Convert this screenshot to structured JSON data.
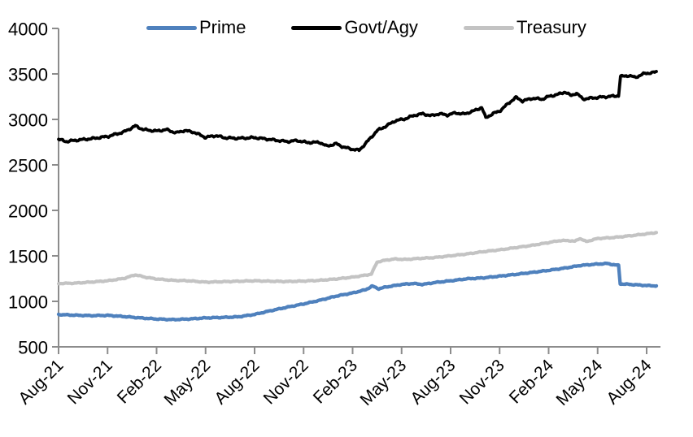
{
  "chart_data": {
    "type": "line",
    "title": "",
    "background": "#FFFFFF",
    "axis_color": "#8C8C8C",
    "grid": "off",
    "legend_position": "top",
    "x_axis": {
      "label": "",
      "tick_labels": [
        "Aug-21",
        "Nov-21",
        "Feb-22",
        "May-22",
        "Aug-22",
        "Nov-22",
        "Feb-23",
        "May-23",
        "Aug-23",
        "Nov-23",
        "Feb-24",
        "May-24",
        "Aug-24"
      ],
      "tick_months": [
        0,
        3,
        6,
        9,
        12,
        15,
        18,
        21,
        24,
        27,
        30,
        33,
        36
      ],
      "range_months": [
        0,
        36.6
      ]
    },
    "y_axis": {
      "label": "",
      "min": 500,
      "max": 4000,
      "step": 500,
      "tick_labels": [
        "500",
        "1000",
        "1500",
        "2000",
        "2500",
        "3000",
        "3500",
        "4000"
      ],
      "tick_values": [
        500,
        1000,
        1500,
        2000,
        2500,
        3000,
        3500,
        4000
      ]
    },
    "legend": [
      {
        "name": "Prime",
        "color": "#4F81BD"
      },
      {
        "name": "Govt/Agy",
        "color": "#000000"
      },
      {
        "name": "Treasury",
        "color": "#C3C3C3"
      }
    ],
    "series": [
      {
        "name": "Prime",
        "color": "#4F81BD",
        "stroke_width": 4.3,
        "noise_amp": 6,
        "points": [
          [
            0,
            855
          ],
          [
            1,
            848
          ],
          [
            2,
            843
          ],
          [
            3,
            846
          ],
          [
            4,
            833
          ],
          [
            5,
            818
          ],
          [
            6,
            806
          ],
          [
            7,
            799
          ],
          [
            8,
            806
          ],
          [
            9,
            818
          ],
          [
            10,
            823
          ],
          [
            11,
            830
          ],
          [
            12,
            856
          ],
          [
            13,
            898
          ],
          [
            14,
            936
          ],
          [
            15,
            972
          ],
          [
            16,
            1012
          ],
          [
            17,
            1058
          ],
          [
            18,
            1092
          ],
          [
            18.8,
            1128
          ],
          [
            19.2,
            1168
          ],
          [
            19.6,
            1138
          ],
          [
            20,
            1156
          ],
          [
            21,
            1186
          ],
          [
            21.7,
            1196
          ],
          [
            22.3,
            1186
          ],
          [
            23,
            1206
          ],
          [
            24,
            1226
          ],
          [
            25,
            1248
          ],
          [
            26,
            1258
          ],
          [
            27,
            1277
          ],
          [
            28,
            1297
          ],
          [
            29,
            1318
          ],
          [
            30,
            1341
          ],
          [
            31,
            1366
          ],
          [
            32,
            1396
          ],
          [
            33,
            1410
          ],
          [
            33.6,
            1416
          ],
          [
            34,
            1402
          ],
          [
            34.28,
            1396
          ],
          [
            34.38,
            1192
          ],
          [
            35,
            1186
          ],
          [
            36,
            1174
          ],
          [
            36.6,
            1170
          ]
        ]
      },
      {
        "name": "Govt/Agy",
        "color": "#000000",
        "stroke_width": 3.8,
        "noise_amp": 13,
        "points": [
          [
            0,
            2780
          ],
          [
            0.5,
            2757
          ],
          [
            1,
            2770
          ],
          [
            2,
            2788
          ],
          [
            3,
            2812
          ],
          [
            4,
            2862
          ],
          [
            4.7,
            2928
          ],
          [
            5.2,
            2888
          ],
          [
            6,
            2872
          ],
          [
            6.6,
            2888
          ],
          [
            7.2,
            2852
          ],
          [
            7.7,
            2878
          ],
          [
            8.3,
            2858
          ],
          [
            9,
            2802
          ],
          [
            9.6,
            2822
          ],
          [
            10.2,
            2798
          ],
          [
            11,
            2792
          ],
          [
            12,
            2800
          ],
          [
            13,
            2778
          ],
          [
            14,
            2756
          ],
          [
            14.6,
            2768
          ],
          [
            15.2,
            2746
          ],
          [
            16,
            2748
          ],
          [
            16.4,
            2706
          ],
          [
            17,
            2732
          ],
          [
            17.5,
            2692
          ],
          [
            18,
            2672
          ],
          [
            18.4,
            2660
          ],
          [
            19,
            2776
          ],
          [
            19.5,
            2876
          ],
          [
            20,
            2922
          ],
          [
            20.6,
            2984
          ],
          [
            21.2,
            3006
          ],
          [
            21.8,
            3046
          ],
          [
            22.3,
            3062
          ],
          [
            22.8,
            3040
          ],
          [
            23.3,
            3062
          ],
          [
            23.8,
            3048
          ],
          [
            24.3,
            3072
          ],
          [
            24.8,
            3058
          ],
          [
            25.4,
            3092
          ],
          [
            25.9,
            3132
          ],
          [
            26.15,
            3018
          ],
          [
            26.6,
            3064
          ],
          [
            27,
            3092
          ],
          [
            27.6,
            3186
          ],
          [
            28,
            3242
          ],
          [
            28.4,
            3202
          ],
          [
            29,
            3232
          ],
          [
            29.6,
            3222
          ],
          [
            30,
            3252
          ],
          [
            30.6,
            3276
          ],
          [
            31,
            3302
          ],
          [
            31.35,
            3262
          ],
          [
            31.7,
            3288
          ],
          [
            32.1,
            3224
          ],
          [
            32.7,
            3236
          ],
          [
            33.3,
            3246
          ],
          [
            34,
            3256
          ],
          [
            34.28,
            3262
          ],
          [
            34.4,
            3472
          ],
          [
            34.9,
            3482
          ],
          [
            35.3,
            3462
          ],
          [
            35.9,
            3506
          ],
          [
            36.3,
            3512
          ],
          [
            36.6,
            3522
          ]
        ]
      },
      {
        "name": "Treasury",
        "color": "#C3C3C3",
        "stroke_width": 4.2,
        "noise_amp": 6,
        "points": [
          [
            0,
            1196
          ],
          [
            1,
            1200
          ],
          [
            2,
            1212
          ],
          [
            3,
            1226
          ],
          [
            4,
            1252
          ],
          [
            4.7,
            1292
          ],
          [
            5.3,
            1266
          ],
          [
            6,
            1246
          ],
          [
            7,
            1231
          ],
          [
            8,
            1226
          ],
          [
            9,
            1211
          ],
          [
            10,
            1216
          ],
          [
            11,
            1221
          ],
          [
            12,
            1226
          ],
          [
            13,
            1221
          ],
          [
            14,
            1218
          ],
          [
            15,
            1223
          ],
          [
            16,
            1231
          ],
          [
            17,
            1246
          ],
          [
            18,
            1266
          ],
          [
            18.8,
            1288
          ],
          [
            19.15,
            1300
          ],
          [
            19.5,
            1432
          ],
          [
            20,
            1452
          ],
          [
            20.6,
            1466
          ],
          [
            21.2,
            1460
          ],
          [
            22,
            1471
          ],
          [
            23,
            1481
          ],
          [
            24,
            1501
          ],
          [
            25,
            1521
          ],
          [
            26,
            1546
          ],
          [
            27,
            1566
          ],
          [
            28,
            1591
          ],
          [
            29,
            1616
          ],
          [
            30,
            1646
          ],
          [
            30.6,
            1666
          ],
          [
            31.2,
            1669
          ],
          [
            31.6,
            1659
          ],
          [
            31.9,
            1692
          ],
          [
            32.3,
            1657
          ],
          [
            33,
            1691
          ],
          [
            34,
            1702
          ],
          [
            35,
            1721
          ],
          [
            36,
            1742
          ],
          [
            36.6,
            1756
          ]
        ]
      }
    ]
  }
}
